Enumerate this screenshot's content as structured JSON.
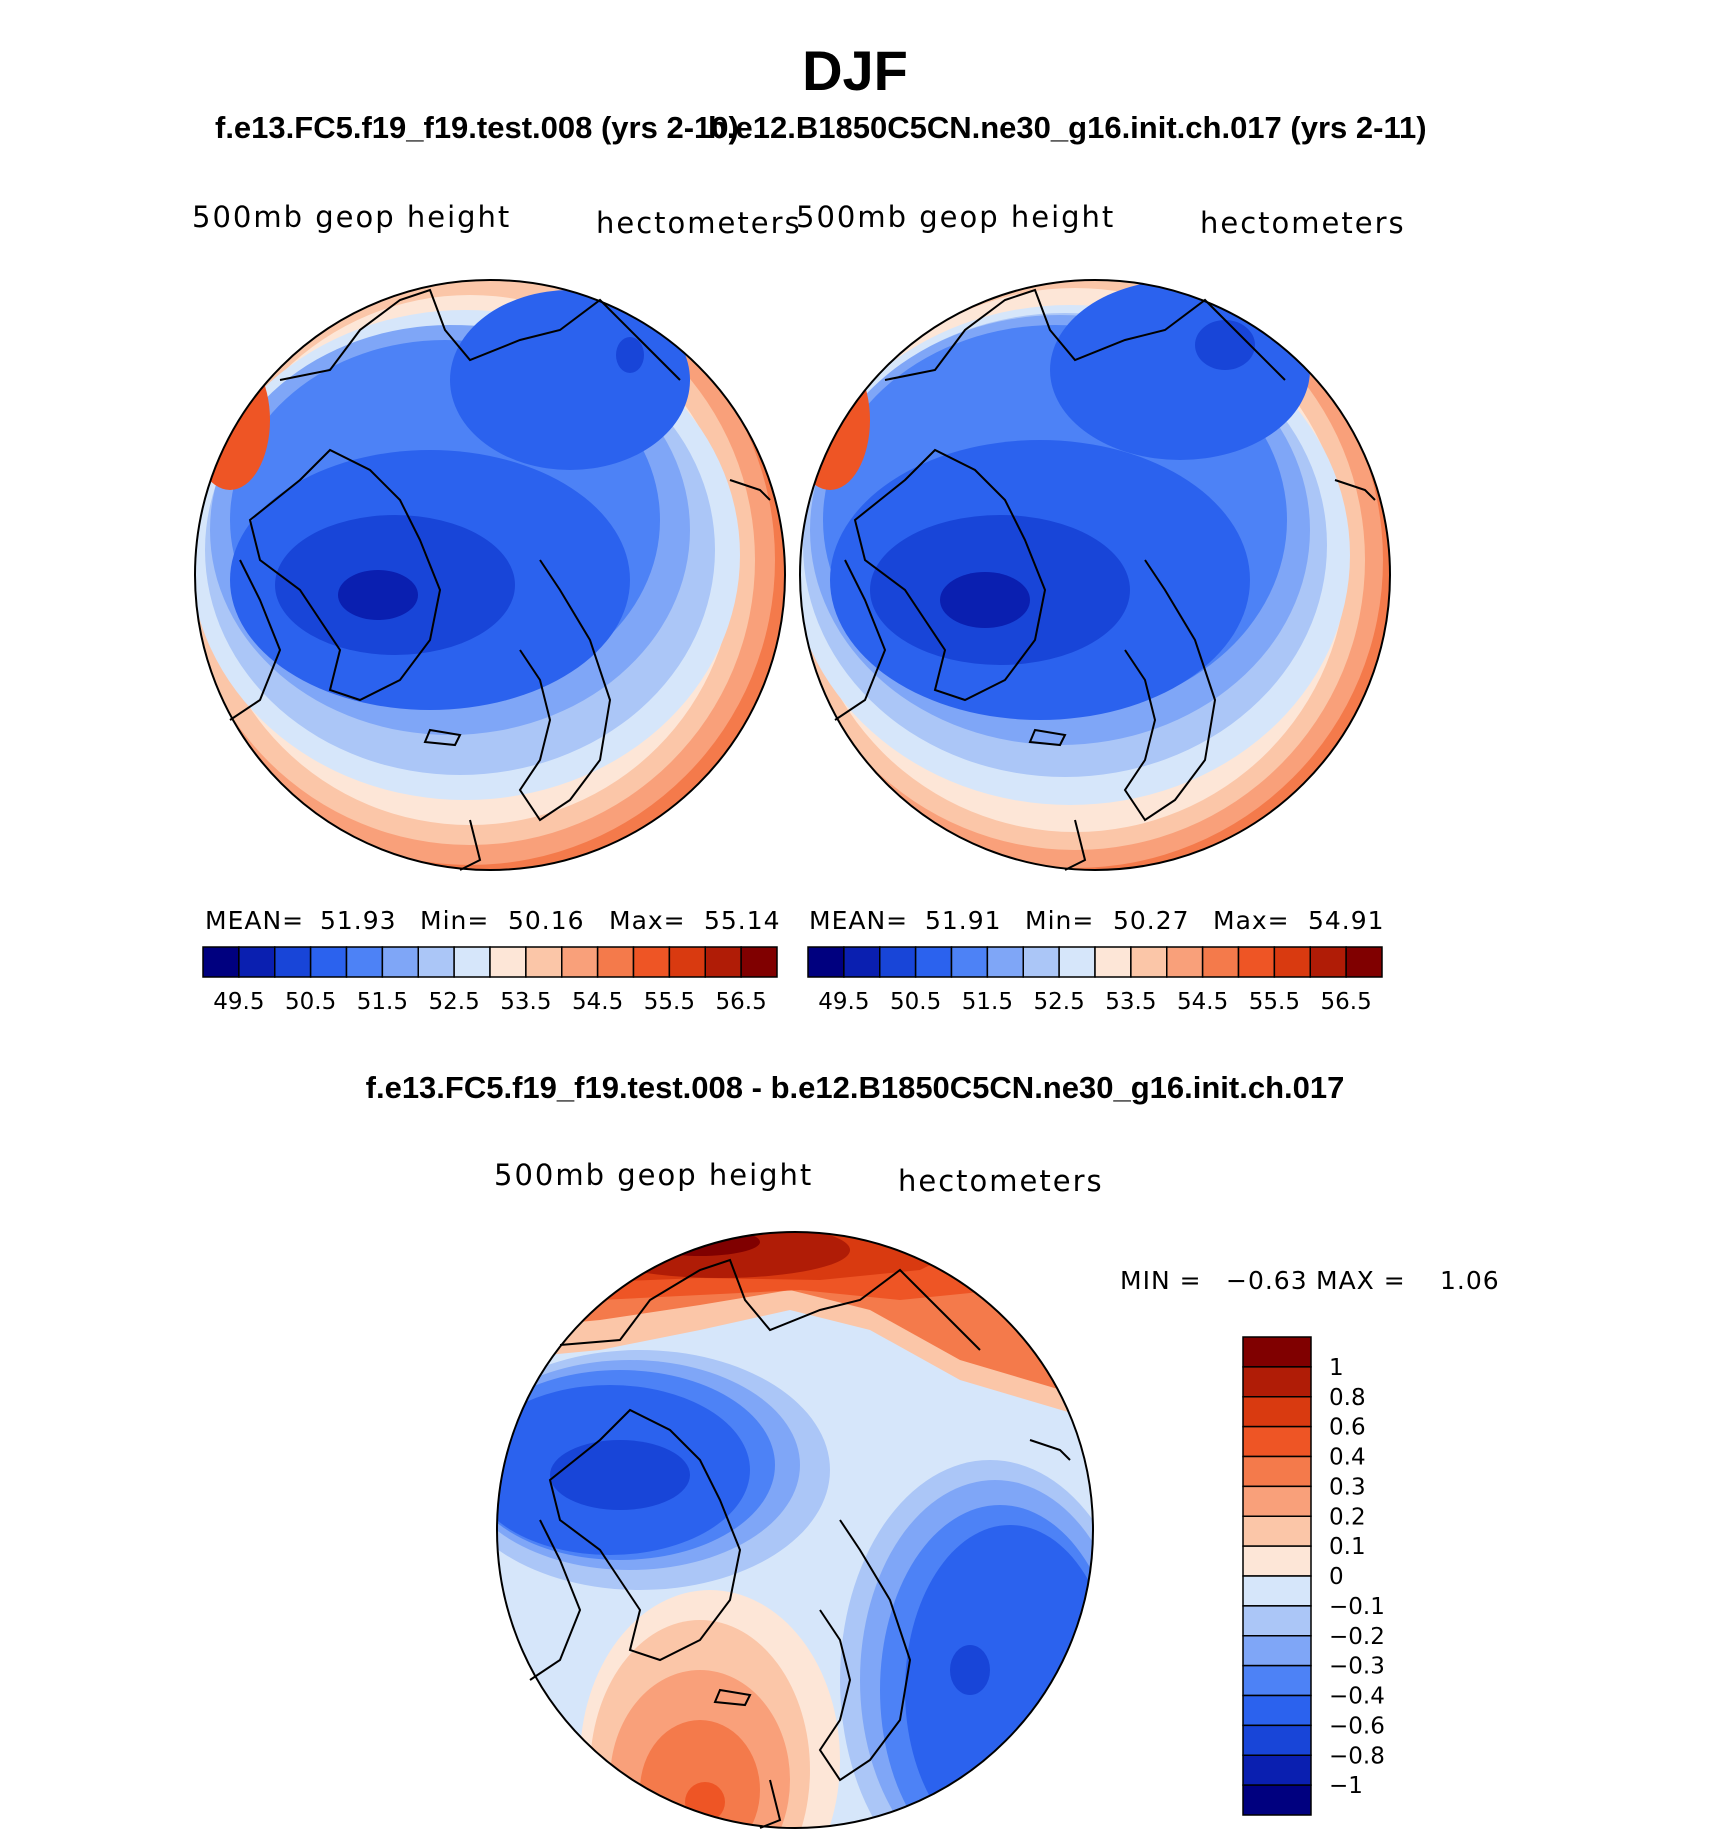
{
  "title": "DJF",
  "cases": {
    "left": "f.e13.FC5.f19_f19.test.008 (yrs 2-10)",
    "right": "b.e12.B1850C5CN.ne30_g16.init.ch.017 (yrs 2-11)"
  },
  "diff_title": "f.e13.FC5.f19_f19.test.008 - b.e12.B1850C5CN.ne30_g16.init.ch.017",
  "panels": [
    {
      "variable": "500mb geop height",
      "units": "hectometers",
      "mean_label": "MEAN=",
      "mean": "51.93",
      "min_label": "Min=",
      "min": "50.16",
      "max_label": "Max=",
      "max": "55.14"
    },
    {
      "variable": "500mb geop height",
      "units": "hectometers",
      "mean_label": "MEAN=",
      "mean": "51.91",
      "min_label": "Min=",
      "min": "50.27",
      "max_label": "Max=",
      "max": "54.91"
    }
  ],
  "diff_panel": {
    "variable": "500mb geop height",
    "units": "hectometers",
    "min_label": "MIN =",
    "min": "−0.63",
    "max_label": "MAX =",
    "max": "1.06"
  },
  "colorbar_field": {
    "tick_labels": [
      "49.5",
      "50.5",
      "51.5",
      "52.5",
      "53.5",
      "54.5",
      "55.5",
      "56.5"
    ],
    "colors": [
      "#00007f",
      "#0a1fb0",
      "#1845d8",
      "#2b62ee",
      "#4d82f6",
      "#7fa6f7",
      "#abc6f7",
      "#d6e6fa",
      "#fde6d7",
      "#fbc6a8",
      "#f9a07a",
      "#f47a4b",
      "#ee5525",
      "#d93a10",
      "#b01c06",
      "#800000"
    ]
  },
  "colorbar_diff": {
    "tick_labels": [
      "1",
      "0.8",
      "0.6",
      "0.4",
      "0.3",
      "0.2",
      "0.1",
      "0",
      "−0.1",
      "−0.2",
      "−0.3",
      "−0.4",
      "−0.6",
      "−0.8",
      "−1"
    ],
    "colors": [
      "#800000",
      "#b01c06",
      "#d93a10",
      "#ee5525",
      "#f47a4b",
      "#f9a07a",
      "#fbc6a8",
      "#fde6d7",
      "#d6e6fa",
      "#abc6f7",
      "#7fa6f7",
      "#4d82f6",
      "#2b62ee",
      "#1845d8",
      "#0a1fb0",
      "#00007f"
    ]
  }
}
